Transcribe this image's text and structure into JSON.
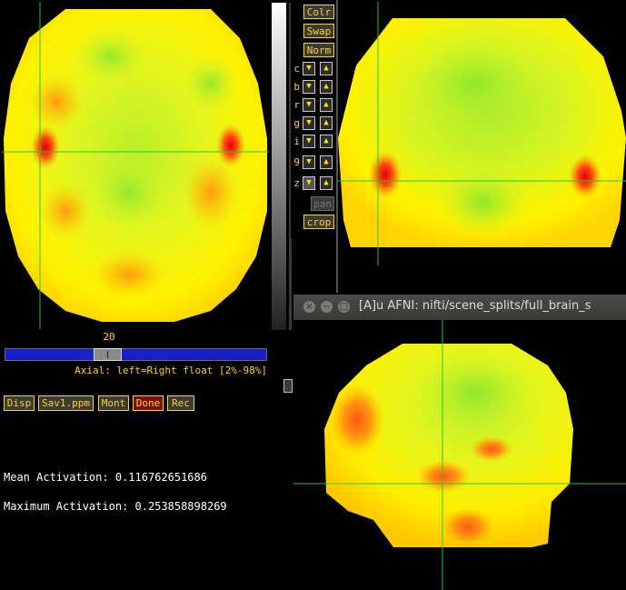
{
  "axial_view": {
    "slice_number": "20",
    "caption": "Axial: left=Right float [2%-98%]"
  },
  "controls": {
    "colr": "Colr",
    "swap": "Swap",
    "norm": "Norm",
    "rows": [
      {
        "label": "c"
      },
      {
        "label": "b"
      },
      {
        "label": "r"
      },
      {
        "label": "g"
      },
      {
        "label": "i"
      },
      {
        "label": "9"
      },
      {
        "label": "z"
      }
    ],
    "pan": "pan",
    "crop": "crop"
  },
  "bottom_buttons": {
    "disp": "Disp",
    "save": "Sav1.ppm",
    "mont": "Mont",
    "done": "Done",
    "rec": "Rec"
  },
  "sagittal_window": {
    "title": "[A]u AFNI: nifti/scene_splits/full_brain_s",
    "close_glyph": "×",
    "minimize_glyph": "−",
    "maximize_glyph": "□"
  },
  "terminal": {
    "mean_line": "Mean Activation: 0.116762651686",
    "max_line": "Maximum Activation: 0.253858898269"
  },
  "colors": {
    "button_text": "#ffd21f",
    "crosshair": "#28c828",
    "slider": "#1a20c9",
    "done_bg": "#7a1010"
  },
  "icons": [
    "close-icon",
    "minimize-icon",
    "maximize-icon",
    "down-arrow-icon",
    "up-arrow-icon"
  ]
}
